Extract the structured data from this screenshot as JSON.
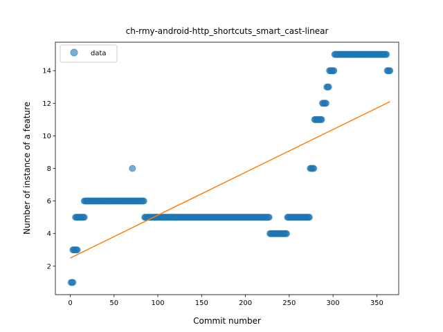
{
  "chart_data": {
    "type": "scatter",
    "title": "ch-rmy-android-http_shortcuts_smart_cast-linear",
    "xlabel": "Commit number",
    "ylabel": "Number of instance of a feature",
    "xlim": [
      -17,
      375
    ],
    "ylim": [
      0.25,
      15.75
    ],
    "xticks": [
      0,
      50,
      100,
      150,
      200,
      250,
      300,
      350
    ],
    "yticks": [
      2,
      4,
      6,
      8,
      10,
      12,
      14
    ],
    "grid": false,
    "legend": {
      "position": "top-left",
      "entries": [
        "data"
      ]
    },
    "series": [
      {
        "name": "data",
        "kind": "scatter",
        "color": "#1f77b4",
        "runs": [
          {
            "x_start": 1,
            "x_end": 3,
            "y": 1
          },
          {
            "x_start": 3,
            "x_end": 8,
            "y": 3
          },
          {
            "x_start": 6,
            "x_end": 16,
            "y": 5
          },
          {
            "x_start": 16,
            "x_end": 84,
            "y": 6
          },
          {
            "x_start": 71,
            "x_end": 71,
            "y": 8
          },
          {
            "x_start": 85,
            "x_end": 227,
            "y": 5
          },
          {
            "x_start": 228,
            "x_end": 247,
            "y": 4
          },
          {
            "x_start": 248,
            "x_end": 273,
            "y": 5
          },
          {
            "x_start": 274,
            "x_end": 278,
            "y": 8
          },
          {
            "x_start": 279,
            "x_end": 287,
            "y": 11
          },
          {
            "x_start": 288,
            "x_end": 292,
            "y": 12
          },
          {
            "x_start": 293,
            "x_end": 295,
            "y": 13
          },
          {
            "x_start": 296,
            "x_end": 301,
            "y": 14
          },
          {
            "x_start": 302,
            "x_end": 361,
            "y": 15
          },
          {
            "x_start": 362,
            "x_end": 365,
            "y": 14
          }
        ]
      },
      {
        "name": "",
        "kind": "line",
        "color": "#ff7f0e",
        "x": [
          0,
          365
        ],
        "y": [
          2.5,
          12.1
        ]
      }
    ]
  }
}
